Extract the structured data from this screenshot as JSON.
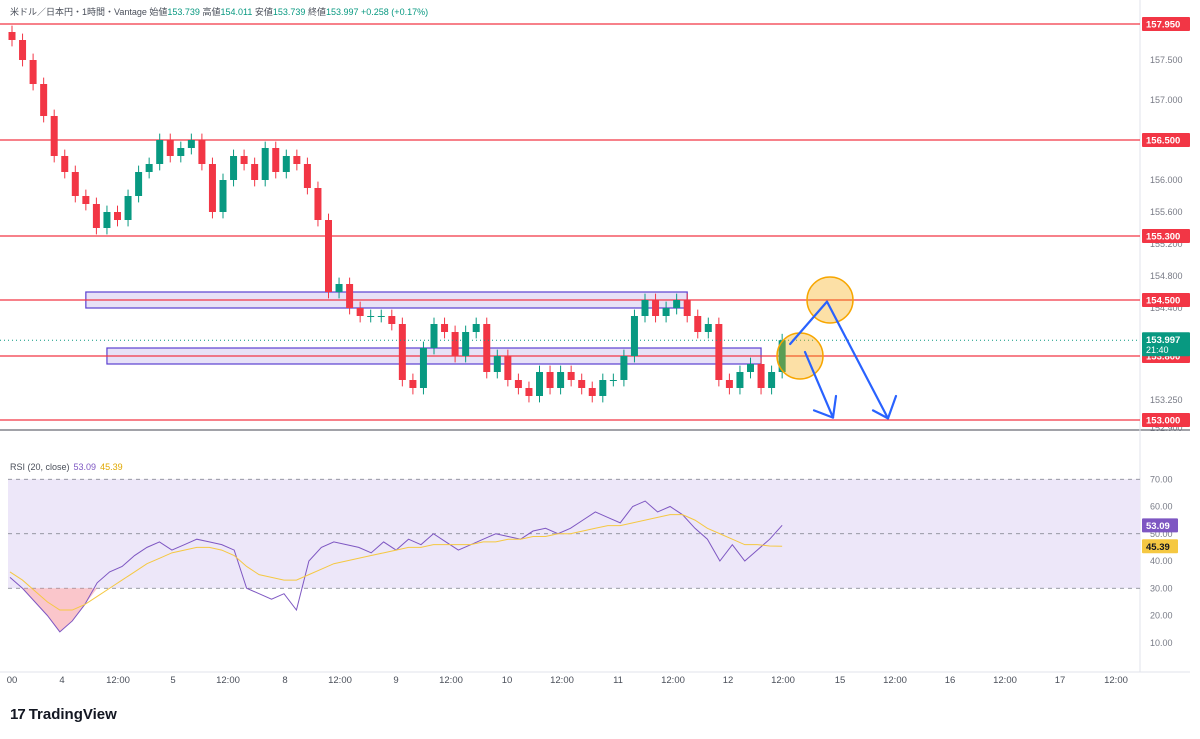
{
  "header": {
    "symbol_line": "米ドル／日本円・1時間・Vantage",
    "open_label": "始値",
    "open_value": "153.739",
    "high_label": "高値",
    "high_value": "154.011",
    "low_label": "安値",
    "low_value": "153.739",
    "close_label": "終値",
    "close_value": "153.997",
    "change": "+0.258 (+0.17%)"
  },
  "rsi_header": {
    "label": "RSI (20, close)",
    "rsi_value": "53.09",
    "ma_value": "45.39"
  },
  "brand": {
    "logo_text": "TradingView",
    "logo_mark": "17"
  },
  "colors": {
    "up": "#089981",
    "down": "#f23645",
    "hline": "#f23645",
    "zone_fill": "#e1d9f5",
    "zone_stroke": "#5b3fd0",
    "arrow": "#2962ff",
    "circle": "#f7a600",
    "rsi_line": "#7e57c2",
    "rsi_ma": "#f5c842",
    "rsi_band": "#ede7f9"
  },
  "chart_data": [
    {
      "type": "candlestick",
      "title": "米ドル／日本円・1時間・Vantage",
      "x_tick_labels": [
        "00",
        "4",
        "12:00",
        "5",
        "12:00",
        "8",
        "12:00",
        "9",
        "12:00",
        "10",
        "12:00",
        "11",
        "12:00",
        "12",
        "12:00",
        "15",
        "12:00",
        "16",
        "12:00",
        "17",
        "12:00"
      ],
      "y_tick_labels": [
        157.5,
        157.0,
        156.0,
        155.6,
        155.2,
        154.8,
        154.4,
        153.25,
        152.9
      ],
      "ylim": [
        152.9,
        158.0
      ],
      "horizontal_levels": [
        157.95,
        156.5,
        155.3,
        154.5,
        153.8,
        153.0
      ],
      "level_labels": [
        "157.950",
        "156.500",
        "155.300",
        "154.500",
        "153.800",
        "153.000"
      ],
      "last_price": {
        "value": 153.997,
        "label": "153.997",
        "countdown": "21:40"
      },
      "zones": [
        {
          "top": 154.6,
          "bottom": 154.4,
          "x_start": 7,
          "x_end": 64
        },
        {
          "top": 153.9,
          "bottom": 153.7,
          "x_start": 9,
          "x_end": 71
        }
      ],
      "closes": [
        157.75,
        157.5,
        157.2,
        156.8,
        156.3,
        156.1,
        155.8,
        155.7,
        155.4,
        155.6,
        155.5,
        155.8,
        156.1,
        156.2,
        156.5,
        156.3,
        156.4,
        156.5,
        156.2,
        155.6,
        156.0,
        156.3,
        156.2,
        156.0,
        156.4,
        156.1,
        156.3,
        156.2,
        155.9,
        155.5,
        154.6,
        154.7,
        154.4,
        154.3,
        154.3,
        154.3,
        154.2,
        153.5,
        153.4,
        153.9,
        154.2,
        154.1,
        153.8,
        154.1,
        154.2,
        153.6,
        153.8,
        153.5,
        153.4,
        153.3,
        153.6,
        153.4,
        153.6,
        153.5,
        153.4,
        153.3,
        153.5,
        153.5,
        153.8,
        154.3,
        154.5,
        154.3,
        154.4,
        154.5,
        154.3,
        154.1,
        154.2,
        153.5,
        153.4,
        153.6,
        153.7,
        153.4,
        153.6,
        153.997
      ],
      "rsi": {
        "label": "RSI (20, close)",
        "ylim": [
          0,
          80
        ],
        "y_tick_labels": [
          70,
          60,
          50,
          40,
          30,
          20,
          10
        ],
        "bands": [
          70,
          50,
          30
        ],
        "rsi_values": [
          34,
          30,
          25,
          20,
          14,
          18,
          24,
          32,
          36,
          38,
          42,
          45,
          47,
          44,
          46,
          48,
          47,
          46,
          44,
          30,
          28,
          26,
          28,
          22,
          40,
          45,
          47,
          46,
          45,
          43,
          47,
          44,
          48,
          46,
          50,
          47,
          44,
          46,
          48,
          50,
          49,
          48,
          51,
          52,
          50,
          52,
          55,
          58,
          56,
          54,
          60,
          62,
          58,
          60,
          57,
          52,
          48,
          40,
          46,
          40,
          44,
          48,
          53.09
        ],
        "ma_values": [
          36,
          33,
          29,
          25,
          22,
          22,
          24,
          27,
          30,
          33,
          36,
          39,
          41,
          43,
          44,
          45,
          45,
          44,
          42,
          38,
          35,
          34,
          33,
          33,
          35,
          37,
          39,
          40,
          41,
          42,
          43,
          44,
          45,
          45,
          46,
          46,
          46,
          46,
          47,
          47,
          48,
          48,
          49,
          49,
          50,
          50,
          51,
          52,
          53,
          53,
          54,
          55,
          56,
          57,
          57,
          55,
          52,
          50,
          48,
          46,
          46,
          45.5,
          45.39
        ],
        "rsi_label": "53.09",
        "ma_label": "45.39"
      }
    }
  ]
}
